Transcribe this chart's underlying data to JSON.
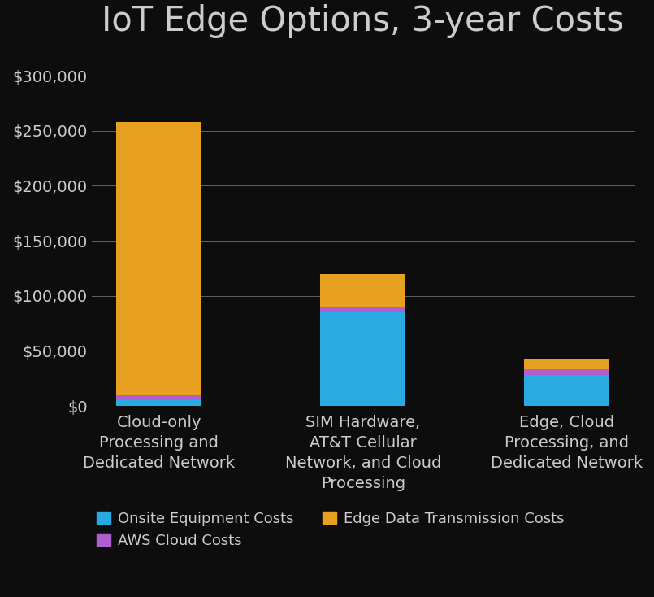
{
  "title": "IoT Edge Options, 3-year Costs",
  "categories": [
    "Cloud-only\nProcessing and\nDedicated Network",
    "SIM Hardware,\nAT&T Cellular\nNetwork, and Cloud\nProcessing",
    "Edge, Cloud\nProcessing, and\nDedicated Network"
  ],
  "onsite_equipment": [
    5000,
    85000,
    28000
  ],
  "aws_cloud": [
    5000,
    5000,
    5000
  ],
  "edge_data_transmission": [
    248000,
    30000,
    10000
  ],
  "color_onsite": "#29ABE2",
  "color_aws": "#B05FCF",
  "color_edge": "#E8A020",
  "ylim": [
    0,
    320000
  ],
  "yticks": [
    0,
    50000,
    100000,
    150000,
    200000,
    250000,
    300000
  ],
  "background_color": "#0d0d0d",
  "plot_bg_color": "#0d0d0d",
  "text_color": "#cccccc",
  "grid_color": "#777777",
  "title_fontsize": 30,
  "tick_fontsize": 14,
  "legend_fontsize": 13,
  "bar_width": 0.42,
  "legend_items": [
    "Onsite Equipment Costs",
    "AWS Cloud Costs",
    "Edge Data Transmission Costs"
  ]
}
